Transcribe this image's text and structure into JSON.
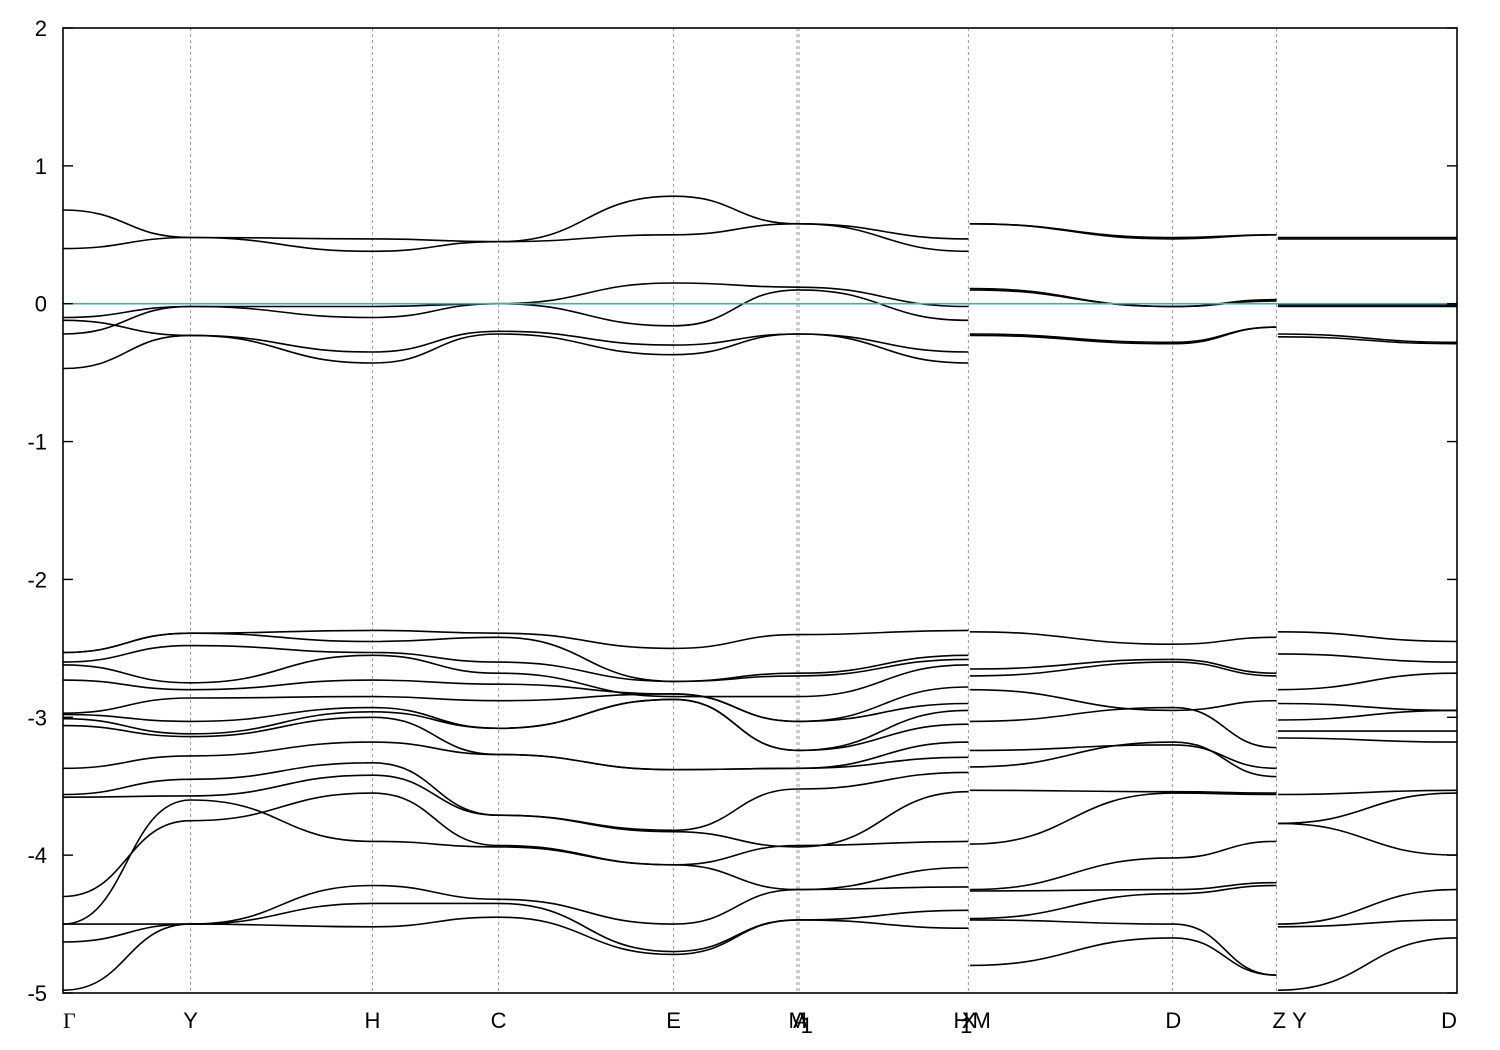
{
  "chart_data": {
    "type": "line",
    "title": "",
    "xlabel": "",
    "ylabel": "",
    "ylim": [
      -5,
      2
    ],
    "xlim": [
      0,
      1.0
    ],
    "grid": "vertical dashed lines at high-symmetry points",
    "y_ticks": [
      "2",
      "1",
      "0",
      "-1",
      "-2",
      "-3",
      "-4",
      "-5"
    ],
    "y_tick_values": [
      2,
      1,
      0,
      -1,
      -2,
      -3,
      -4,
      -5
    ],
    "fermi_level": 0,
    "colors": {
      "bands": "#000000",
      "fermi": "#4aa6c8",
      "grid": "#9a9a9a"
    },
    "kpoints": [
      {
        "label": "Γ",
        "x": 0.0
      },
      {
        "label": "Y",
        "x": 0.0915
      },
      {
        "label": "H",
        "x": 0.222
      },
      {
        "label": "C",
        "x": 0.3125
      },
      {
        "label": "E",
        "x": 0.438
      },
      {
        "label": "M",
        "x": 0.527
      },
      {
        "label": "A",
        "x": 0.529
      },
      {
        "label": "1",
        "x": 0.5335
      },
      {
        "label": "H",
        "x": 0.6445
      },
      {
        "label": "1",
        "x": 0.648
      },
      {
        "label": "X",
        "x": 0.65
      },
      {
        "label": "M",
        "x": 0.659
      },
      {
        "label": "D",
        "x": 0.7965
      },
      {
        "label": "Z",
        "x": 0.8725
      },
      {
        "label": "Y",
        "x": 0.887
      },
      {
        "label": "D",
        "x": 1.0
      }
    ],
    "vlines": [
      0.0915,
      0.222,
      0.3125,
      0.438,
      0.5265,
      0.528,
      0.6495,
      0.796,
      0.8705
    ],
    "series": [
      {
        "segment": 1,
        "x": [
          0,
          0.0915,
          0.222,
          0.3125,
          0.438,
          0.5275,
          0.6495
        ],
        "y": [
          0.68,
          0.48,
          0.47,
          0.45,
          0.78,
          0.58,
          0.47
        ]
      },
      {
        "segment": 1,
        "x": [
          0,
          0.0915,
          0.222,
          0.3125,
          0.438,
          0.5275,
          0.6495
        ],
        "y": [
          0.4,
          0.48,
          0.38,
          0.45,
          0.5,
          0.58,
          0.38
        ]
      },
      {
        "segment": 1,
        "x": [
          0,
          0.0915,
          0.222,
          0.3125,
          0.438,
          0.5275,
          0.6495
        ],
        "y": [
          -0.1,
          -0.02,
          -0.02,
          0.0,
          0.15,
          0.12,
          -0.02
        ]
      },
      {
        "segment": 1,
        "x": [
          0,
          0.0915,
          0.222,
          0.3125,
          0.438,
          0.5275,
          0.6495
        ],
        "y": [
          -0.22,
          -0.02,
          -0.1,
          0.0,
          -0.16,
          0.1,
          -0.12
        ]
      },
      {
        "segment": 1,
        "x": [
          0,
          0.0915,
          0.222,
          0.3125,
          0.438,
          0.5275,
          0.6495
        ],
        "y": [
          -0.12,
          -0.23,
          -0.35,
          -0.2,
          -0.3,
          -0.22,
          -0.35
        ]
      },
      {
        "segment": 1,
        "x": [
          0,
          0.0915,
          0.222,
          0.3125,
          0.438,
          0.5275,
          0.6495
        ],
        "y": [
          -0.47,
          -0.23,
          -0.43,
          -0.22,
          -0.37,
          -0.22,
          -0.43
        ]
      },
      {
        "segment": 1,
        "x": [
          0,
          0.0915,
          0.222,
          0.3125,
          0.438,
          0.5275,
          0.6495
        ],
        "y": [
          -2.53,
          -2.39,
          -2.37,
          -2.39,
          -2.5,
          -2.4,
          -2.37
        ]
      },
      {
        "segment": 1,
        "x": [
          0,
          0.0915,
          0.222,
          0.3125,
          0.438,
          0.5275,
          0.6495
        ],
        "y": [
          -2.53,
          -2.39,
          -2.45,
          -2.42,
          -2.74,
          -2.68,
          -2.55
        ]
      },
      {
        "segment": 1,
        "x": [
          0,
          0.0915,
          0.222,
          0.3125,
          0.438,
          0.5275,
          0.6495
        ],
        "y": [
          -2.6,
          -2.48,
          -2.53,
          -2.6,
          -2.74,
          -2.7,
          -2.58
        ]
      },
      {
        "segment": 1,
        "x": [
          0,
          0.0915,
          0.222,
          0.3125,
          0.438,
          0.5275,
          0.6495
        ],
        "y": [
          -2.62,
          -2.75,
          -2.55,
          -2.68,
          -2.85,
          -2.85,
          -2.62
        ]
      },
      {
        "segment": 1,
        "x": [
          0,
          0.0915,
          0.222,
          0.3125,
          0.438,
          0.5275,
          0.6495
        ],
        "y": [
          -2.73,
          -2.8,
          -2.73,
          -2.76,
          -2.83,
          -3.03,
          -2.78
        ]
      },
      {
        "segment": 1,
        "x": [
          0,
          0.0915,
          0.222,
          0.3125,
          0.438,
          0.5275,
          0.6495
        ],
        "y": [
          -2.97,
          -2.86,
          -2.85,
          -2.88,
          -2.83,
          -3.03,
          -2.9
        ]
      },
      {
        "segment": 1,
        "x": [
          0,
          0.0915,
          0.222,
          0.3125,
          0.438,
          0.5275,
          0.6495
        ],
        "y": [
          -2.98,
          -3.03,
          -2.93,
          -3.08,
          -2.87,
          -3.24,
          -2.95
        ]
      },
      {
        "segment": 1,
        "x": [
          0,
          0.0915,
          0.222,
          0.3125,
          0.438,
          0.5275,
          0.6495
        ],
        "y": [
          -3.01,
          -3.12,
          -2.96,
          -3.08,
          -2.87,
          -3.24,
          -3.05
        ]
      },
      {
        "segment": 1,
        "x": [
          0,
          0.0915,
          0.222,
          0.3125,
          0.438,
          0.5275,
          0.6495
        ],
        "y": [
          -3.06,
          -3.14,
          -3.0,
          -3.27,
          -3.38,
          -3.37,
          -3.18
        ]
      },
      {
        "segment": 1,
        "x": [
          0,
          0.0915,
          0.222,
          0.3125,
          0.438,
          0.5275,
          0.6495
        ],
        "y": [
          -3.37,
          -3.28,
          -3.18,
          -3.27,
          -3.38,
          -3.37,
          -3.29
        ]
      },
      {
        "segment": 1,
        "x": [
          0,
          0.0915,
          0.222,
          0.3125,
          0.438,
          0.5275,
          0.6495
        ],
        "y": [
          -3.56,
          -3.45,
          -3.33,
          -3.71,
          -3.82,
          -3.52,
          -3.4
        ]
      },
      {
        "segment": 1,
        "x": [
          0,
          0.0915,
          0.222,
          0.3125,
          0.438,
          0.5275,
          0.6495
        ],
        "y": [
          -3.58,
          -3.57,
          -3.42,
          -3.71,
          -3.83,
          -3.94,
          -3.54
        ]
      },
      {
        "segment": 1,
        "x": [
          0,
          0.0915,
          0.222,
          0.3125,
          0.438,
          0.5275,
          0.6495
        ],
        "y": [
          -4.3,
          -3.75,
          -3.55,
          -3.93,
          -4.07,
          -3.93,
          -3.9
        ]
      },
      {
        "segment": 1,
        "x": [
          0,
          0.0915,
          0.222,
          0.3125,
          0.438,
          0.5275,
          0.6495
        ],
        "y": [
          -4.5,
          -3.6,
          -3.9,
          -3.94,
          -4.07,
          -4.25,
          -4.09
        ]
      },
      {
        "segment": 1,
        "x": [
          0,
          0.0915,
          0.222,
          0.3125,
          0.438,
          0.5275,
          0.6495
        ],
        "y": [
          -4.5,
          -4.5,
          -4.22,
          -4.32,
          -4.5,
          -4.25,
          -4.23
        ]
      },
      {
        "segment": 1,
        "x": [
          0,
          0.0915,
          0.222,
          0.3125,
          0.438,
          0.5275,
          0.6495
        ],
        "y": [
          -4.63,
          -4.5,
          -4.35,
          -4.35,
          -4.7,
          -4.47,
          -4.4
        ]
      },
      {
        "segment": 1,
        "x": [
          0,
          0.0915,
          0.222,
          0.3125,
          0.438,
          0.5275,
          0.6495
        ],
        "y": [
          -4.98,
          -4.5,
          -4.52,
          -4.45,
          -4.72,
          -4.47,
          -4.53
        ]
      },
      {
        "segment": 2,
        "x": [
          0.6505,
          0.7965,
          0.8705
        ],
        "y": [
          0.58,
          0.48,
          0.5
        ]
      },
      {
        "segment": 2,
        "x": [
          0.6505,
          0.7965,
          0.8705
        ],
        "y": [
          0.58,
          0.47,
          0.5
        ]
      },
      {
        "segment": 2,
        "x": [
          0.6505,
          0.7965,
          0.8705
        ],
        "y": [
          0.11,
          -0.02,
          0.03
        ]
      },
      {
        "segment": 2,
        "x": [
          0.6505,
          0.7965,
          0.8705
        ],
        "y": [
          0.1,
          -0.02,
          0.02
        ]
      },
      {
        "segment": 2,
        "x": [
          0.6505,
          0.7965,
          0.8705
        ],
        "y": [
          -0.22,
          -0.28,
          -0.17
        ]
      },
      {
        "segment": 2,
        "x": [
          0.6505,
          0.7965,
          0.8705
        ],
        "y": [
          -0.23,
          -0.29,
          -0.17
        ]
      },
      {
        "segment": 2,
        "x": [
          0.6505,
          0.7965,
          0.8705
        ],
        "y": [
          -2.38,
          -2.47,
          -2.42
        ]
      },
      {
        "segment": 2,
        "x": [
          0.6505,
          0.7965,
          0.8705
        ],
        "y": [
          -2.65,
          -2.58,
          -2.68
        ]
      },
      {
        "segment": 2,
        "x": [
          0.6505,
          0.7965,
          0.8705
        ],
        "y": [
          -2.7,
          -2.6,
          -2.7
        ]
      },
      {
        "segment": 2,
        "x": [
          0.6505,
          0.7965,
          0.8705
        ],
        "y": [
          -2.8,
          -2.95,
          -2.88
        ]
      },
      {
        "segment": 2,
        "x": [
          0.6505,
          0.7965,
          0.8705
        ],
        "y": [
          -3.03,
          -2.93,
          -3.22
        ]
      },
      {
        "segment": 2,
        "x": [
          0.6505,
          0.7965,
          0.8705
        ],
        "y": [
          -3.24,
          -3.2,
          -3.37
        ]
      },
      {
        "segment": 2,
        "x": [
          0.6505,
          0.7965,
          0.8705
        ],
        "y": [
          -3.36,
          -3.18,
          -3.43
        ]
      },
      {
        "segment": 2,
        "x": [
          0.6505,
          0.7965,
          0.8705
        ],
        "y": [
          -3.53,
          -3.54,
          -3.55
        ]
      },
      {
        "segment": 2,
        "x": [
          0.6505,
          0.7965,
          0.8705
        ],
        "y": [
          -3.92,
          -3.55,
          -3.56
        ]
      },
      {
        "segment": 2,
        "x": [
          0.6505,
          0.7965,
          0.8705
        ],
        "y": [
          -4.25,
          -4.02,
          -3.9
        ]
      },
      {
        "segment": 2,
        "x": [
          0.6505,
          0.7965,
          0.8705
        ],
        "y": [
          -4.26,
          -4.25,
          -4.2
        ]
      },
      {
        "segment": 2,
        "x": [
          0.6505,
          0.7965,
          0.8705
        ],
        "y": [
          -4.46,
          -4.28,
          -4.22
        ]
      },
      {
        "segment": 2,
        "x": [
          0.6505,
          0.7965,
          0.8705
        ],
        "y": [
          -4.47,
          -4.5,
          -4.87
        ]
      },
      {
        "segment": 2,
        "x": [
          0.6505,
          0.7965,
          0.8705
        ],
        "y": [
          -4.8,
          -4.6,
          -4.87
        ]
      },
      {
        "segment": 3,
        "x": [
          0.8715,
          1.0
        ],
        "y": [
          0.48,
          0.48
        ]
      },
      {
        "segment": 3,
        "x": [
          0.8715,
          1.0
        ],
        "y": [
          0.47,
          0.47
        ]
      },
      {
        "segment": 3,
        "x": [
          0.8715,
          1.0
        ],
        "y": [
          -0.01,
          -0.01
        ]
      },
      {
        "segment": 3,
        "x": [
          0.8715,
          1.0
        ],
        "y": [
          -0.02,
          -0.02
        ]
      },
      {
        "segment": 3,
        "x": [
          0.8715,
          1.0
        ],
        "y": [
          -0.22,
          -0.28
        ]
      },
      {
        "segment": 3,
        "x": [
          0.8715,
          1.0
        ],
        "y": [
          -0.24,
          -0.29
        ]
      },
      {
        "segment": 3,
        "x": [
          0.8715,
          1.0
        ],
        "y": [
          -2.38,
          -2.45
        ]
      },
      {
        "segment": 3,
        "x": [
          0.8715,
          1.0
        ],
        "y": [
          -2.54,
          -2.6
        ]
      },
      {
        "segment": 3,
        "x": [
          0.8715,
          1.0
        ],
        "y": [
          -2.8,
          -2.68
        ]
      },
      {
        "segment": 3,
        "x": [
          0.8715,
          1.0
        ],
        "y": [
          -2.9,
          -2.95
        ]
      },
      {
        "segment": 3,
        "x": [
          0.8715,
          1.0
        ],
        "y": [
          -3.02,
          -2.95
        ]
      },
      {
        "segment": 3,
        "x": [
          0.8715,
          1.0
        ],
        "y": [
          -3.1,
          -3.1
        ]
      },
      {
        "segment": 3,
        "x": [
          0.8715,
          1.0
        ],
        "y": [
          -3.15,
          -3.18
        ]
      },
      {
        "segment": 3,
        "x": [
          0.8715,
          1.0
        ],
        "y": [
          -3.56,
          -3.53
        ]
      },
      {
        "segment": 3,
        "x": [
          0.8715,
          1.0
        ],
        "y": [
          -3.77,
          -3.55
        ]
      },
      {
        "segment": 3,
        "x": [
          0.8715,
          1.0
        ],
        "y": [
          -3.77,
          -4.0
        ]
      },
      {
        "segment": 3,
        "x": [
          0.8715,
          1.0
        ],
        "y": [
          -4.5,
          -4.25
        ]
      },
      {
        "segment": 3,
        "x": [
          0.8715,
          1.0
        ],
        "y": [
          -4.52,
          -4.47
        ]
      },
      {
        "segment": 3,
        "x": [
          0.8715,
          1.0
        ],
        "y": [
          -4.98,
          -4.6
        ]
      }
    ]
  }
}
